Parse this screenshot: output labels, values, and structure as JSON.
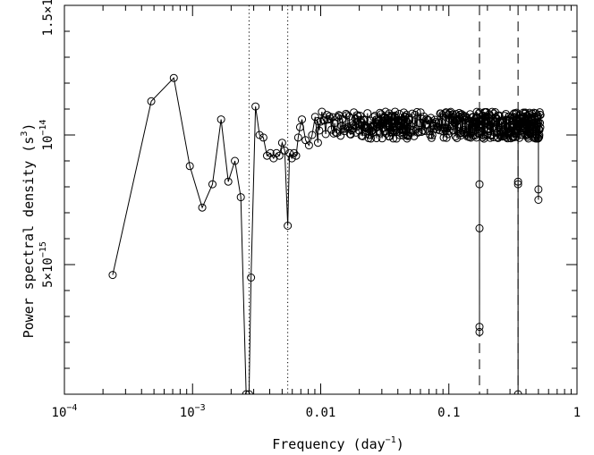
{
  "chart_data": {
    "type": "line",
    "title": "",
    "xlabel": "Frequency (day",
    "xlabel_sup": "−1",
    "xlabel_close": ")",
    "ylabel": "Power spectral density (s",
    "ylabel_sup": "3",
    "ylabel_close": ")",
    "xscale": "log",
    "xlim": [
      0.0001,
      1
    ],
    "ylim": [
      0,
      1.5e-14
    ],
    "grid": false,
    "x_ticks": [
      {
        "value": 0.0001,
        "label": "10",
        "sup": "−4"
      },
      {
        "value": 0.001,
        "label": "10",
        "sup": "−3"
      },
      {
        "value": 0.01,
        "label": "0.01",
        "sup": ""
      },
      {
        "value": 0.1,
        "label": "0.1",
        "sup": ""
      },
      {
        "value": 1,
        "label": "1",
        "sup": ""
      }
    ],
    "y_ticks": [
      {
        "value": 5e-15,
        "label": "5×10",
        "sup": "−15"
      },
      {
        "value": 1e-14,
        "label": "10",
        "sup": "−14"
      },
      {
        "value": 1.5e-14,
        "label": "1.5×10",
        "sup": "−14"
      }
    ],
    "vlines": [
      {
        "x": 0.00276,
        "style": "dotted"
      },
      {
        "x": 0.00553,
        "style": "dotted"
      },
      {
        "x": 0.1734,
        "style": "dashed"
      },
      {
        "x": 0.3468,
        "style": "dashed"
      }
    ],
    "series": [
      {
        "x": [
          0.000238,
          0.000476,
          0.000714,
          0.000952,
          0.00119,
          0.00143,
          0.00167,
          0.0019,
          0.00214,
          0.00238,
          0.00262,
          0.00276,
          0.00286,
          0.0031,
          0.00333,
          0.00357,
          0.00381,
          0.00405,
          0.00429,
          0.00452,
          0.00476,
          0.005,
          0.00524,
          0.00553,
          0.00571,
          0.00595,
          0.00619,
          0.00643,
          0.00667,
          0.0069,
          0.00714,
          0.00762,
          0.0081,
          0.00857,
          0.00905,
          0.00952
        ],
        "y": [
          4.6e-15,
          1.13e-14,
          1.22e-14,
          8.8e-15,
          7.2e-15,
          8.1e-15,
          1.06e-14,
          8.2e-15,
          9e-15,
          7.6e-15,
          0.0,
          0.0,
          4.5e-15,
          1.11e-14,
          1e-14,
          9.9e-15,
          9.2e-15,
          9.3e-15,
          9.1e-15,
          9.3e-15,
          9.2e-15,
          9.7e-15,
          9.4e-15,
          6.5e-15,
          9.3e-15,
          9.1e-15,
          9.3e-15,
          9.2e-15,
          9.9e-15,
          1.03e-14,
          1.06e-14,
          9.8e-15,
          9.6e-15,
          1e-14,
          1.07e-14,
          9.7e-15
        ],
        "dense_band": {
          "x_min": 0.0095,
          "x_max": 0.52,
          "y_min": 9e-15,
          "y_max": 1.09e-14
        },
        "dips": [
          {
            "x": 0.1734,
            "y": [
              8.1e-15,
              6.4e-15,
              2.6e-15,
              2.4e-15
            ]
          },
          {
            "x": 0.3468,
            "y": [
              8.2e-15,
              8.1e-15,
              0.0
            ]
          },
          {
            "x": 0.5,
            "y": [
              7.9e-15,
              7.5e-15
            ]
          }
        ]
      }
    ]
  }
}
